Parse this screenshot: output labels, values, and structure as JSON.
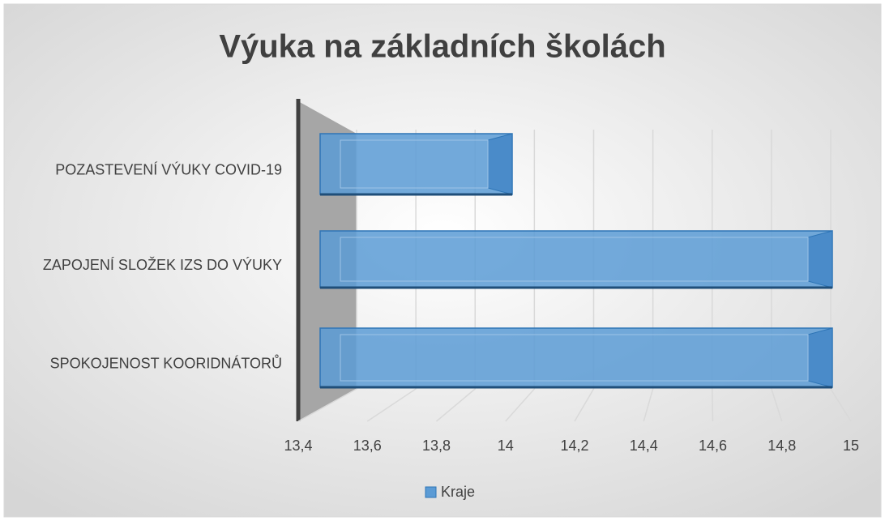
{
  "chart_data": {
    "type": "bar3d_horizontal",
    "title": "Výuka na základních školách",
    "categories": [
      "POZASTEVENÍ VÝUKY COVID-19",
      "ZAPOJENÍ SLOŽEK IZS DO VÝUKY",
      "SPOKOJENOST KOORIDNÁTORŮ"
    ],
    "series": [
      {
        "name": "Kraje",
        "color": "#5b9bd5",
        "values": [
          14,
          15,
          15
        ]
      }
    ],
    "xlim": [
      13.4,
      15
    ],
    "xticks": [
      {
        "value": 13.4,
        "label": "13,4"
      },
      {
        "value": 13.6,
        "label": "13,6"
      },
      {
        "value": 13.8,
        "label": "13,8"
      },
      14,
      {
        "value": 14.2,
        "label": "14,2"
      },
      {
        "value": 14.4,
        "label": "14,4"
      },
      {
        "value": 14.6,
        "label": "14,6"
      },
      {
        "value": 14.8,
        "label": "14,8"
      },
      15
    ],
    "grid": true,
    "legend": "bottom"
  }
}
